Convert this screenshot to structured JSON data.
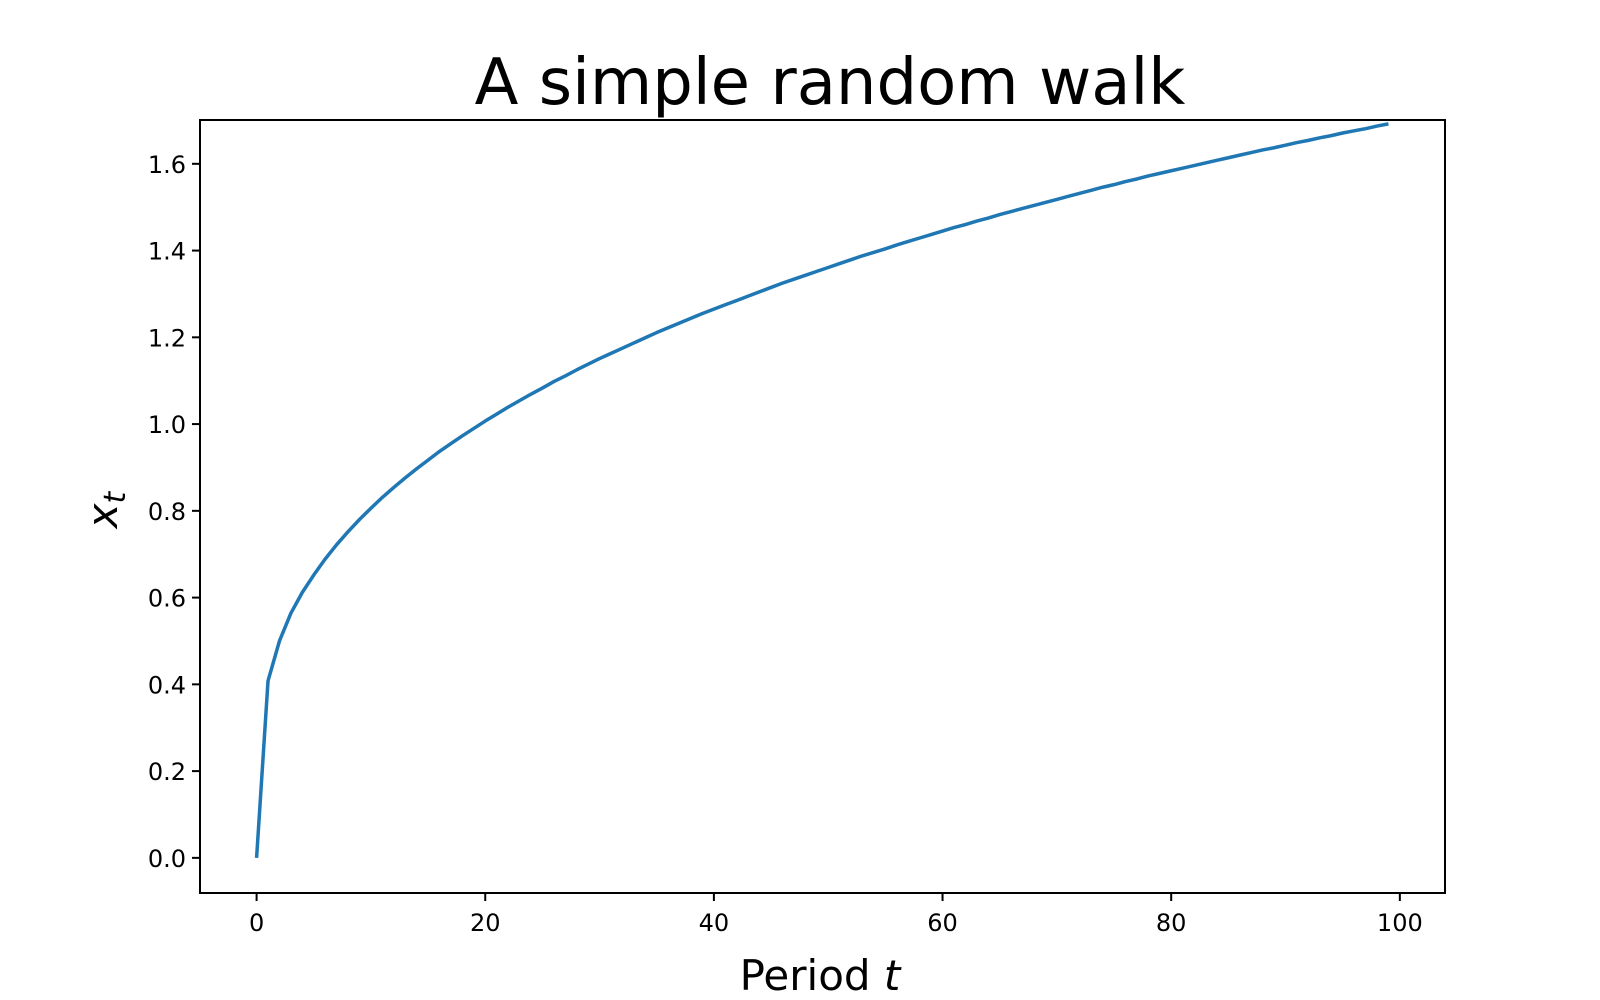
{
  "chart_data": {
    "type": "line",
    "title": "A simple random walk",
    "xlabel": {
      "text": "Period ",
      "var": "t"
    },
    "ylabel": {
      "var": "x",
      "subscript": "t"
    },
    "xlim": [
      -4.95,
      103.95
    ],
    "ylim": [
      -0.081,
      1.701
    ],
    "xticks": [
      0,
      20,
      40,
      60,
      80,
      100
    ],
    "xtick_labels": [
      "0",
      "20",
      "40",
      "60",
      "80",
      "100"
    ],
    "yticks": [
      0.0,
      0.2,
      0.4,
      0.6,
      0.8,
      1.0,
      1.2,
      1.4,
      1.6
    ],
    "ytick_labels": [
      "0.0",
      "0.2",
      "0.4",
      "0.6",
      "0.8",
      "1.0",
      "1.2",
      "1.4",
      "1.6"
    ],
    "grid": false,
    "series": [
      {
        "color": "#1f77b4",
        "x": [
          0,
          1,
          2,
          3,
          4,
          5,
          6,
          7,
          8,
          9,
          10,
          11,
          12,
          13,
          14,
          15,
          16,
          17,
          18,
          19,
          20,
          21,
          22,
          23,
          24,
          25,
          26,
          27,
          28,
          29,
          30,
          31,
          32,
          33,
          34,
          35,
          36,
          37,
          38,
          39,
          40,
          41,
          42,
          43,
          44,
          45,
          46,
          47,
          48,
          49,
          50,
          51,
          52,
          53,
          54,
          55,
          56,
          57,
          58,
          59,
          60,
          61,
          62,
          63,
          64,
          65,
          66,
          67,
          68,
          69,
          70,
          71,
          72,
          73,
          74,
          75,
          76,
          77,
          78,
          79,
          80,
          81,
          82,
          83,
          84,
          85,
          86,
          87,
          88,
          89,
          90,
          91,
          92,
          93,
          94,
          95,
          96,
          97,
          98,
          99
        ],
        "y": [
          0.0,
          0.408,
          0.5,
          0.564,
          0.612,
          0.652,
          0.689,
          0.722,
          0.752,
          0.78,
          0.806,
          0.831,
          0.854,
          0.876,
          0.897,
          0.917,
          0.937,
          0.955,
          0.973,
          0.99,
          1.007,
          1.023,
          1.039,
          1.054,
          1.069,
          1.083,
          1.098,
          1.111,
          1.125,
          1.138,
          1.151,
          1.163,
          1.175,
          1.187,
          1.199,
          1.211,
          1.222,
          1.233,
          1.244,
          1.255,
          1.265,
          1.275,
          1.285,
          1.295,
          1.305,
          1.315,
          1.325,
          1.334,
          1.343,
          1.352,
          1.361,
          1.37,
          1.379,
          1.388,
          1.396,
          1.404,
          1.413,
          1.421,
          1.429,
          1.437,
          1.445,
          1.453,
          1.46,
          1.468,
          1.475,
          1.483,
          1.49,
          1.497,
          1.504,
          1.511,
          1.518,
          1.525,
          1.532,
          1.539,
          1.546,
          1.552,
          1.559,
          1.565,
          1.572,
          1.578,
          1.584,
          1.59,
          1.596,
          1.602,
          1.608,
          1.614,
          1.62,
          1.626,
          1.632,
          1.637,
          1.643,
          1.649,
          1.654,
          1.66,
          1.665,
          1.671,
          1.676,
          1.681,
          1.687,
          1.692
        ]
      }
    ]
  }
}
